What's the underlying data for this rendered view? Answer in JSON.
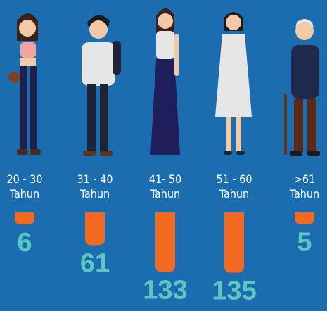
{
  "chart_data": {
    "type": "bar",
    "categories": [
      "20 - 30",
      "31 - 40",
      "41- 50",
      "51 - 60",
      ">61"
    ],
    "category_suffix": "Tahun",
    "values": [
      6,
      61,
      133,
      135,
      5
    ],
    "color": "#f26a22",
    "label_color": "#5cc7c0"
  }
}
